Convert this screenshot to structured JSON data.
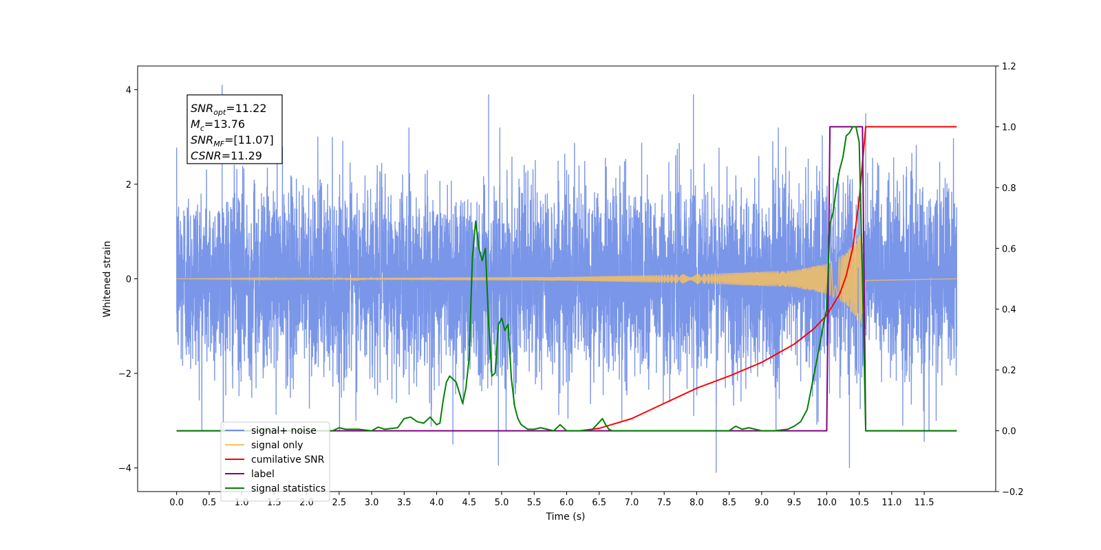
{
  "chart_data": {
    "type": "line",
    "xlabel": "Time (s)",
    "ylabel": "Whitened strain",
    "xlim": [
      -0.6,
      12.6
    ],
    "ylim": [
      -4.5,
      4.5
    ],
    "y2lim": [
      -0.2,
      1.2
    ],
    "x_ticks": [
      "0.0",
      "0.5",
      "1.0",
      "1.5",
      "2.0",
      "2.5",
      "3.0",
      "3.5",
      "4.0",
      "4.5",
      "5.0",
      "5.5",
      "6.0",
      "6.5",
      "7.0",
      "7.5",
      "8.0",
      "8.5",
      "9.0",
      "9.5",
      "10.0",
      "10.5",
      "11.0",
      "11.5"
    ],
    "y_ticks": [
      "4",
      "2",
      "0",
      "−2",
      "−4"
    ],
    "y2_ticks": [
      "1.2",
      "1.0",
      "0.8",
      "0.6",
      "0.4",
      "0.2",
      "0.0",
      "−0.2"
    ],
    "annotation": {
      "lines": [
        {
          "sym": "SNR",
          "sub": "opt",
          "value": "=11.22"
        },
        {
          "sym": "M",
          "sub": "c",
          "value": "=13.76"
        },
        {
          "sym": "SNR",
          "sub": "MF",
          "value": "=[11.07]"
        },
        {
          "sym": "CSNR",
          "sub": "",
          "value": "=11.29"
        }
      ]
    },
    "legend": {
      "placement": "lower-left",
      "entries": [
        {
          "label": "signal+ noise",
          "color": "#6f8de6"
        },
        {
          "label": "signal only",
          "color": "#f5c060"
        },
        {
          "label": "cumilative SNR",
          "color": "#ff0000"
        },
        {
          "label": "label",
          "color": "#800080"
        },
        {
          "label": "signal statistics",
          "color": "#008000"
        }
      ]
    },
    "series": [
      {
        "name": "signal+ noise",
        "axis": "left",
        "color": "#6f8de6",
        "kind": "noise",
        "x_range": [
          0.0,
          12.0
        ],
        "amplitude_range": [
          -4.1,
          4.1
        ],
        "peaks": [
          [
            0.7,
            4.1
          ],
          [
            4.8,
            3.9
          ],
          [
            7.95,
            3.9
          ],
          [
            8.3,
            -4.1
          ],
          [
            10.35,
            -4.0
          ],
          [
            10.6,
            3.5
          ],
          [
            4.25,
            -3.5
          ],
          [
            4.95,
            -3.95
          ],
          [
            11.5,
            -3.45
          ]
        ]
      },
      {
        "name": "signal only",
        "axis": "left",
        "color": "#f5c060",
        "kind": "chirp",
        "x_range": [
          0.0,
          12.0
        ],
        "merger_time": 10.55,
        "envelope": [
          [
            0.0,
            0.0
          ],
          [
            6.0,
            0.04
          ],
          [
            8.0,
            0.1
          ],
          [
            9.5,
            0.18
          ],
          [
            10.0,
            0.32
          ],
          [
            10.3,
            0.55
          ],
          [
            10.5,
            0.95
          ],
          [
            10.55,
            1.0
          ],
          [
            10.6,
            0.05
          ],
          [
            12.0,
            0.0
          ]
        ]
      },
      {
        "name": "cumilative SNR",
        "axis": "right",
        "color": "#ff0000",
        "x": [
          6.2,
          6.5,
          7.0,
          7.5,
          8.0,
          8.5,
          9.0,
          9.5,
          9.8,
          10.0,
          10.2,
          10.3,
          10.4,
          10.5,
          10.55,
          10.6,
          12.0
        ],
        "y": [
          0.0,
          0.008,
          0.04,
          0.09,
          0.14,
          0.18,
          0.225,
          0.285,
          0.335,
          0.38,
          0.45,
          0.51,
          0.6,
          0.76,
          0.88,
          1.0,
          1.0
        ]
      },
      {
        "name": "label",
        "axis": "right",
        "color": "#800080",
        "x": [
          0.0,
          10.0,
          10.05,
          10.55,
          10.6,
          12.0
        ],
        "y": [
          0.0,
          0.0,
          1.0,
          1.0,
          0.0,
          0.0
        ]
      },
      {
        "name": "signal statistics",
        "axis": "right",
        "color": "#008000",
        "x": [
          0.0,
          2.0,
          2.4,
          2.5,
          2.6,
          2.8,
          3.0,
          3.1,
          3.2,
          3.4,
          3.5,
          3.6,
          3.7,
          3.8,
          3.9,
          4.0,
          4.05,
          4.1,
          4.15,
          4.2,
          4.3,
          4.4,
          4.45,
          4.5,
          4.55,
          4.6,
          4.65,
          4.7,
          4.75,
          4.8,
          4.85,
          4.9,
          4.95,
          5.0,
          5.05,
          5.1,
          5.15,
          5.2,
          5.25,
          5.3,
          5.4,
          5.5,
          5.6,
          5.7,
          5.8,
          5.9,
          6.0,
          6.05,
          6.1,
          6.2,
          6.4,
          6.55,
          6.6,
          6.65,
          6.7,
          6.8,
          7.0,
          7.5,
          8.0,
          8.5,
          8.6,
          8.7,
          8.8,
          9.0,
          9.2,
          9.4,
          9.5,
          9.6,
          9.7,
          9.8,
          9.9,
          9.95,
          10.0,
          10.05,
          10.1,
          10.15,
          10.2,
          10.25,
          10.3,
          10.35,
          10.4,
          10.45,
          10.5,
          10.55,
          10.6,
          10.65,
          12.0
        ],
        "y": [
          0.0,
          0.0,
          0.0,
          0.01,
          0.005,
          0.005,
          0.0,
          0.012,
          0.005,
          0.01,
          0.04,
          0.045,
          0.03,
          0.025,
          0.045,
          0.02,
          0.025,
          0.1,
          0.16,
          0.18,
          0.16,
          0.09,
          0.14,
          0.24,
          0.57,
          0.69,
          0.6,
          0.56,
          0.6,
          0.35,
          0.18,
          0.19,
          0.35,
          0.37,
          0.33,
          0.35,
          0.17,
          0.08,
          0.04,
          0.02,
          0.005,
          0.005,
          0.01,
          0.005,
          0.0,
          0.02,
          0.0,
          0.0,
          0.0,
          0.0,
          0.005,
          0.04,
          0.02,
          0.005,
          0.0,
          0.0,
          0.0,
          0.0,
          0.0,
          0.0,
          0.015,
          0.005,
          0.01,
          0.0,
          0.0,
          0.005,
          0.015,
          0.03,
          0.07,
          0.18,
          0.29,
          0.35,
          0.4,
          0.68,
          0.72,
          0.8,
          0.86,
          0.9,
          0.97,
          0.98,
          1.0,
          1.0,
          0.95,
          0.5,
          0.0,
          0.0,
          0.0
        ]
      }
    ]
  }
}
